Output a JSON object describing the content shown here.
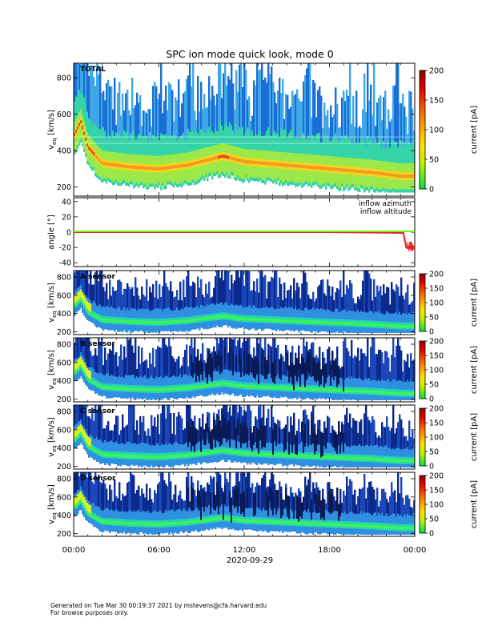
{
  "title": "SPC ion mode quick look, mode 0",
  "date_label": "2020-09-29",
  "time_ticks": [
    "00:00",
    "06:00",
    "12:00",
    "18:00",
    "00:00"
  ],
  "footer": {
    "line1": "Generated on Tue Mar 30 00:19:37 2021 by mstevens@cfa.harvard.edu",
    "line2": "For browse purposes only."
  },
  "colors": {
    "azimuth": "#e8221f",
    "altitude": "#7cf21a"
  },
  "chart_data": [
    {
      "type": "heatmap",
      "panel": "TOTAL",
      "label": "TOTAL",
      "ylabel_main": "v",
      "ylabel_sub": "eq",
      "ylabel_unit": "[km/s]",
      "yticks": [
        200,
        400,
        600,
        800
      ],
      "ylim": [
        150,
        880
      ],
      "x_hours": [
        0,
        24
      ],
      "colorbar_label": "current [pA]",
      "colorbar_ticks": [
        0,
        50,
        100,
        150,
        200
      ],
      "colorbar_range": [
        0,
        200
      ],
      "core_speed_profile": [
        [
          0,
          480
        ],
        [
          0.5,
          560
        ],
        [
          1,
          420
        ],
        [
          2,
          330
        ],
        [
          4,
          310
        ],
        [
          6,
          300
        ],
        [
          8,
          320
        ],
        [
          10.5,
          370
        ],
        [
          12,
          340
        ],
        [
          15,
          320
        ],
        [
          18,
          300
        ],
        [
          21,
          280
        ],
        [
          23,
          260
        ],
        [
          24,
          260
        ]
      ]
    },
    {
      "type": "line",
      "panel": "angle",
      "ylabel": "angle [°]",
      "yticks": [
        -40,
        -20,
        0,
        20,
        40
      ],
      "ylim": [
        -45,
        45
      ],
      "series": [
        {
          "name": "inflow azimuth",
          "x": [
            0,
            6,
            12,
            18,
            23.2,
            23.4,
            24
          ],
          "y": [
            0,
            0,
            0,
            0,
            -1,
            -20,
            -20
          ]
        },
        {
          "name": "inflow altitude",
          "x": [
            0,
            6,
            12,
            18,
            24
          ],
          "y": [
            1,
            1,
            1,
            1,
            1
          ]
        }
      ]
    },
    {
      "type": "heatmap",
      "panel": "A",
      "label": "A sensor",
      "ylabel_main": "v",
      "ylabel_sub": "eq",
      "ylabel_unit": "[km/s]",
      "yticks": [
        200,
        400,
        600,
        800
      ],
      "ylim": [
        170,
        870
      ],
      "colorbar_label": "current [pA]",
      "colorbar_ticks": [
        0,
        50,
        100,
        150,
        200
      ],
      "colorbar_range": [
        0,
        200
      ]
    },
    {
      "type": "heatmap",
      "panel": "B",
      "label": "B sensor",
      "ylabel_main": "v",
      "ylabel_sub": "eq",
      "ylabel_unit": "[km/s]",
      "yticks": [
        200,
        400,
        600,
        800
      ],
      "ylim": [
        170,
        870
      ],
      "colorbar_label": "current [pA]",
      "colorbar_ticks": [
        0,
        50,
        100,
        150,
        200
      ],
      "colorbar_range": [
        0,
        200
      ]
    },
    {
      "type": "heatmap",
      "panel": "C",
      "label": "C sensor",
      "ylabel_main": "v",
      "ylabel_sub": "eq",
      "ylabel_unit": "[km/s]",
      "yticks": [
        200,
        400,
        600,
        800
      ],
      "ylim": [
        170,
        870
      ],
      "colorbar_label": "current [pA]",
      "colorbar_ticks": [
        0,
        50,
        100,
        150,
        200
      ],
      "colorbar_range": [
        0,
        200
      ]
    },
    {
      "type": "heatmap",
      "panel": "D",
      "label": "D sensor",
      "ylabel_main": "v",
      "ylabel_sub": "eq",
      "ylabel_unit": "[km/s]",
      "yticks": [
        200,
        400,
        600,
        800
      ],
      "ylim": [
        170,
        870
      ],
      "colorbar_label": "current [pA]",
      "colorbar_ticks": [
        0,
        50,
        100,
        150,
        200
      ],
      "colorbar_range": [
        0,
        200
      ]
    }
  ]
}
